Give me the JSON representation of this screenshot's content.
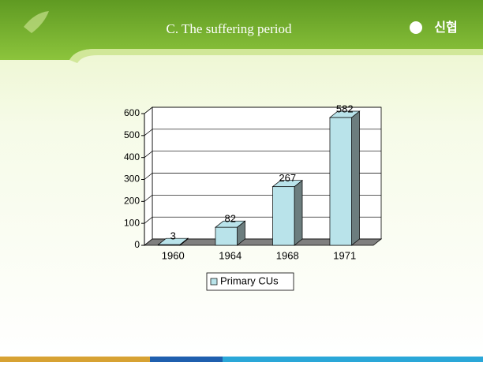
{
  "slide": {
    "title": "C. The suffering period",
    "logo": "신협"
  },
  "chart_data": {
    "type": "bar",
    "categories": [
      "1960",
      "1964",
      "1968",
      "1971"
    ],
    "series": [
      {
        "name": "Primary CUs",
        "color": "#b9e3ea",
        "values": [
          3,
          82,
          267,
          582
        ]
      }
    ],
    "ylim": [
      0,
      600
    ],
    "yticks": [
      0,
      100,
      200,
      300,
      400,
      500,
      600
    ],
    "grid": true,
    "legend": "bottom"
  }
}
